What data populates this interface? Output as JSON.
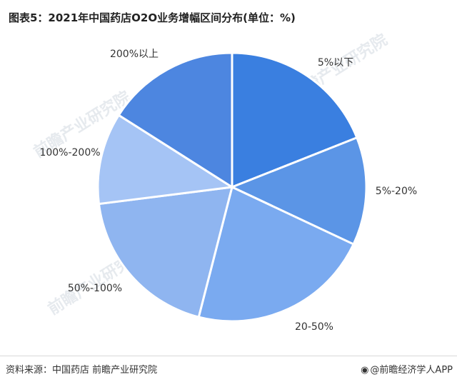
{
  "title": "图表5：2021年中国药店O2O业务增幅区间分布(单位：%)",
  "footer": {
    "source": "资料来源：中国药店 前瞻产业研究院",
    "brand_icon": "weibo-icon",
    "brand": "@前瞻经济学人APP"
  },
  "watermark": "前瞻产业研究院",
  "chart_data": {
    "type": "pie",
    "title": "图表5：2021年中国药店O2O业务增幅区间分布(单位：%)",
    "unit": "%",
    "start_angle_deg": 0,
    "direction": "clockwise",
    "legend": "none (labels outside slices)",
    "slices": [
      {
        "label": "5%以下",
        "value": 19,
        "color": "#3a7fe0"
      },
      {
        "label": "5%-20%",
        "value": 13,
        "color": "#5b95e6"
      },
      {
        "label": "20-50%",
        "value": 22,
        "color": "#7aaaf0"
      },
      {
        "label": "50%-100%",
        "value": 19,
        "color": "#8fb5f0"
      },
      {
        "label": "100%-200%",
        "value": 11,
        "color": "#a5c4f5"
      },
      {
        "label": "200%以上",
        "value": 16,
        "color": "#4d86e0"
      }
    ]
  }
}
